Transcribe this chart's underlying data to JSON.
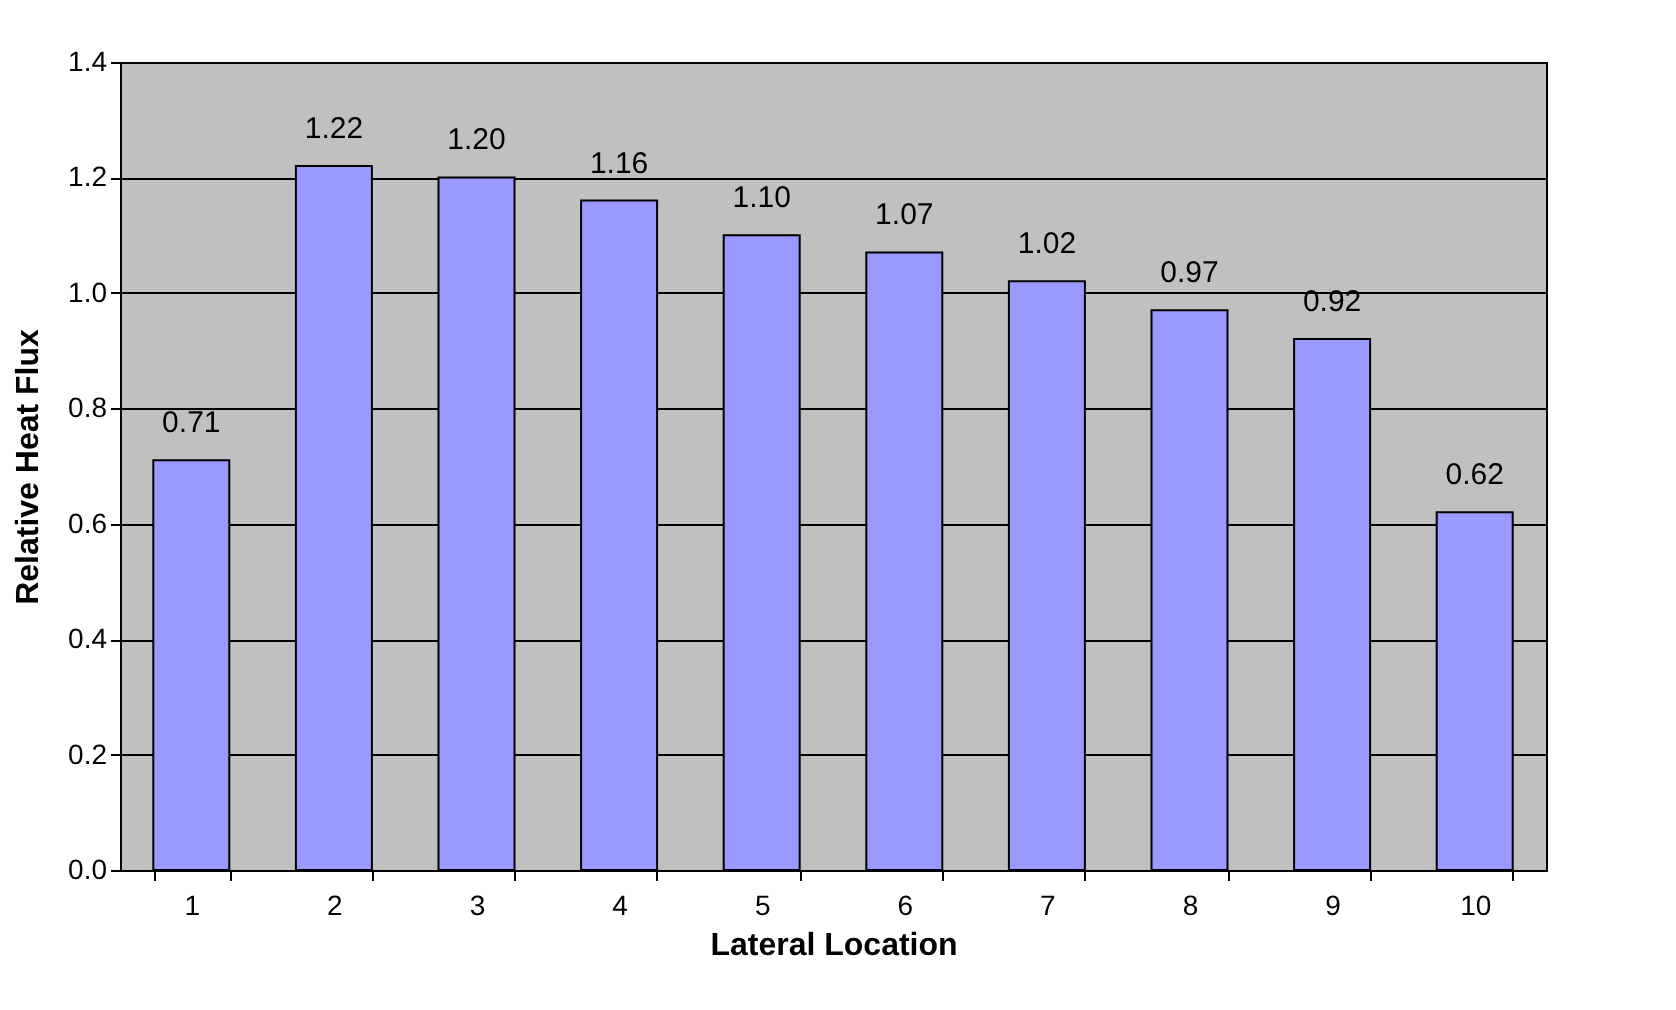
{
  "chart_data": {
    "type": "bar",
    "xlabel": "Lateral Location",
    "ylabel": "Relative Heat Flux",
    "categories": [
      "1",
      "2",
      "3",
      "4",
      "5",
      "6",
      "7",
      "8",
      "9",
      "10"
    ],
    "values": [
      0.71,
      1.22,
      1.2,
      1.16,
      1.1,
      1.07,
      1.02,
      0.97,
      0.92,
      0.62
    ],
    "value_labels": [
      "0.71",
      "1.22",
      "1.20",
      "1.16",
      "1.10",
      "1.07",
      "1.02",
      "0.97",
      "0.92",
      "0.62"
    ],
    "color": "#9999ff",
    "ylim": [
      0,
      1.4
    ],
    "yticks": [
      {
        "value": 0,
        "label": "0.0"
      },
      0.2,
      0.4,
      0.6,
      0.8,
      {
        "value": 1,
        "label": "1.0"
      },
      1.2,
      1.4
    ],
    "grid": "y"
  }
}
